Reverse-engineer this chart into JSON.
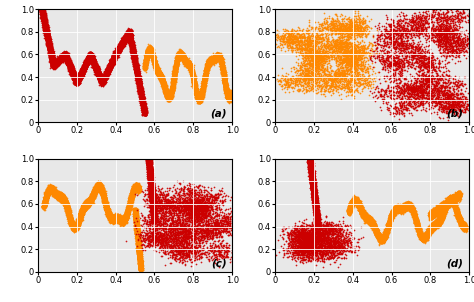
{
  "red_color": "#CC0000",
  "orange_color": "#FF8800",
  "point_size": 1.5,
  "alpha": 0.9,
  "bg_color": "#E8E8E8",
  "xlim": [
    0,
    1.0
  ],
  "ylim": [
    0,
    1.0
  ],
  "xticks": [
    0,
    0.2,
    0.4,
    0.6,
    0.8,
    1.0
  ],
  "yticks": [
    0,
    0.2,
    0.4,
    0.6,
    0.8,
    1.0
  ],
  "labels": [
    "(a)",
    "(b)",
    "(c)",
    "(d)"
  ],
  "tick_fontsize": 6.0,
  "label_fontsize": 7.5
}
